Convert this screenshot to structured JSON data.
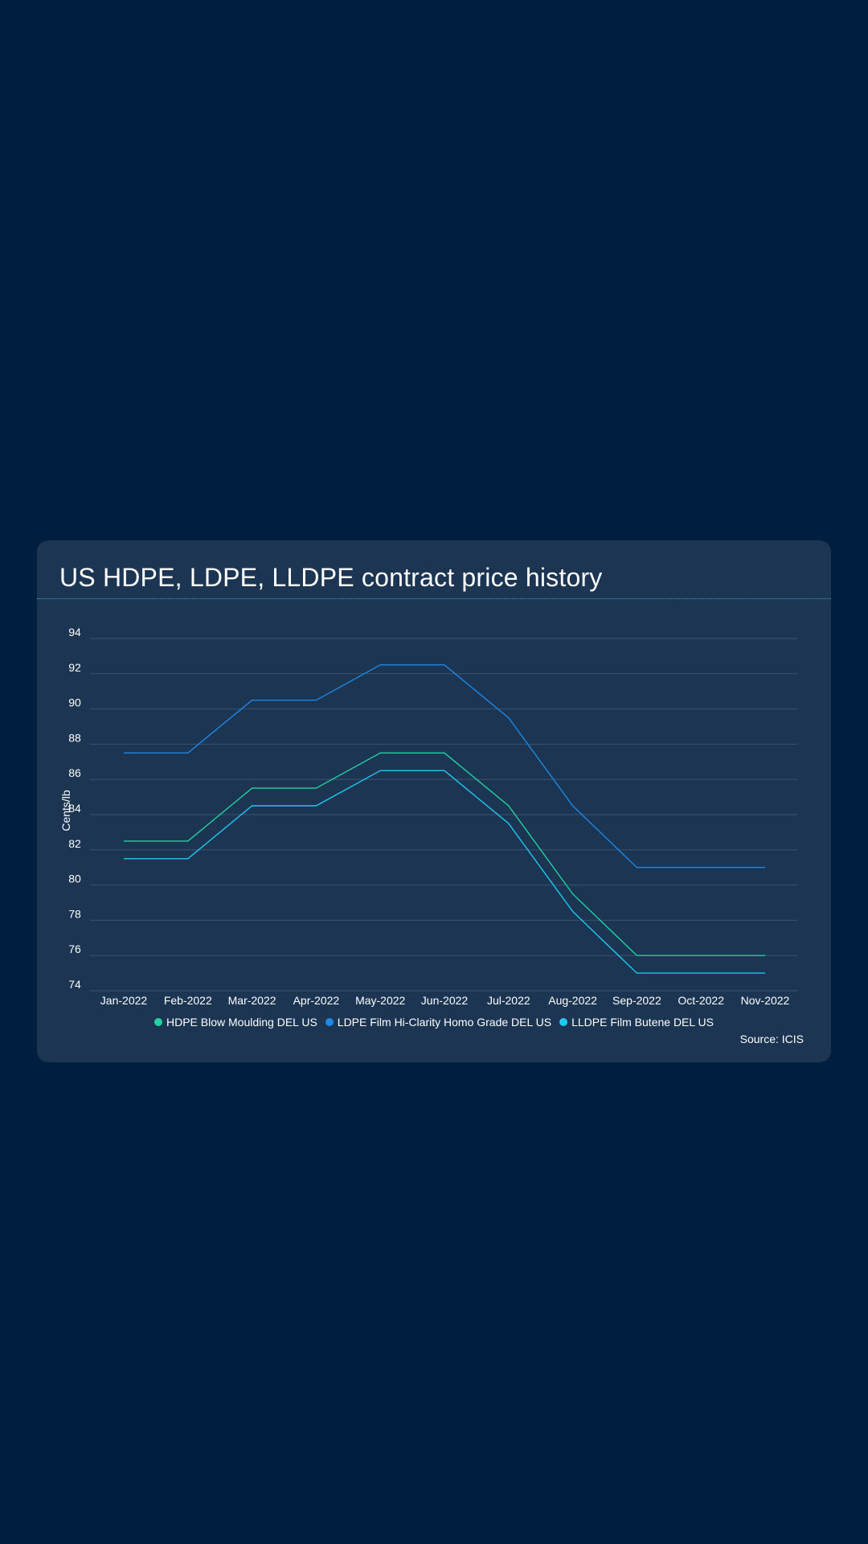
{
  "chart_data": {
    "type": "line",
    "title": "US HDPE, LDPE, LLDPE contract price history",
    "xlabel": "",
    "ylabel": "Cents/lb",
    "ylim": [
      74,
      94
    ],
    "yticks": [
      74,
      76,
      78,
      80,
      82,
      84,
      86,
      88,
      90,
      92,
      94
    ],
    "grid": true,
    "legend_position": "bottom-center",
    "categories": [
      "Jan-2022",
      "Feb-2022",
      "Mar-2022",
      "Apr-2022",
      "May-2022",
      "Jun-2022",
      "Jul-2022",
      "Aug-2022",
      "Sep-2022",
      "Oct-2022",
      "Nov-2022"
    ],
    "series": [
      {
        "name": "HDPE Blow Moulding DEL US",
        "color": "#22d3a0",
        "values": [
          82.5,
          82.5,
          85.5,
          85.5,
          87.5,
          87.5,
          84.5,
          79.5,
          76,
          76,
          76
        ]
      },
      {
        "name": "LDPE Film Hi-Clarity Homo Grade DEL US",
        "color": "#1e88e5",
        "values": [
          87.5,
          87.5,
          90.5,
          90.5,
          92.5,
          92.5,
          89.5,
          84.5,
          81,
          81,
          81
        ]
      },
      {
        "name": "LLDPE Film Butene DEL US",
        "color": "#20c8f0",
        "values": [
          81.5,
          81.5,
          84.5,
          84.5,
          86.5,
          86.5,
          83.5,
          78.5,
          75,
          75,
          75
        ]
      }
    ],
    "source": "Source: ICIS"
  }
}
